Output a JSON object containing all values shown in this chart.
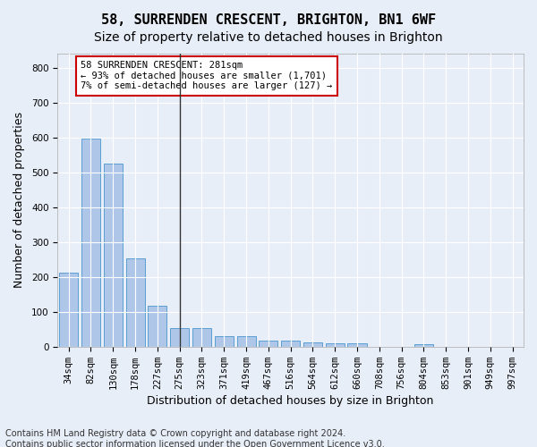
{
  "title_line1": "58, SURRENDEN CRESCENT, BRIGHTON, BN1 6WF",
  "title_line2": "Size of property relative to detached houses in Brighton",
  "xlabel": "Distribution of detached houses by size in Brighton",
  "ylabel": "Number of detached properties",
  "categories": [
    "34sqm",
    "82sqm",
    "130sqm",
    "178sqm",
    "227sqm",
    "275sqm",
    "323sqm",
    "371sqm",
    "419sqm",
    "467sqm",
    "516sqm",
    "564sqm",
    "612sqm",
    "660sqm",
    "708sqm",
    "756sqm",
    "804sqm",
    "853sqm",
    "901sqm",
    "949sqm",
    "997sqm"
  ],
  "values": [
    213,
    597,
    525,
    254,
    117,
    53,
    53,
    30,
    30,
    18,
    17,
    12,
    9,
    9,
    0,
    0,
    8,
    0,
    0,
    0,
    0
  ],
  "bar_color": "#aec6e8",
  "bar_edge_color": "#5a9fd4",
  "marker_index": 5,
  "marker_color": "#333333",
  "annotation_text": "58 SURRENDEN CRESCENT: 281sqm\n← 93% of detached houses are smaller (1,701)\n7% of semi-detached houses are larger (127) →",
  "annotation_box_color": "#ffffff",
  "annotation_box_edge": "#cc0000",
  "ylim": [
    0,
    840
  ],
  "yticks": [
    0,
    100,
    200,
    300,
    400,
    500,
    600,
    700,
    800
  ],
  "footer_line1": "Contains HM Land Registry data © Crown copyright and database right 2024.",
  "footer_line2": "Contains public sector information licensed under the Open Government Licence v3.0.",
  "background_color": "#e8eef8",
  "plot_bg_color": "#e8eef8",
  "grid_color": "#ffffff",
  "title1_fontsize": 11,
  "title2_fontsize": 10,
  "xlabel_fontsize": 9,
  "ylabel_fontsize": 9,
  "tick_fontsize": 7.5,
  "footer_fontsize": 7
}
